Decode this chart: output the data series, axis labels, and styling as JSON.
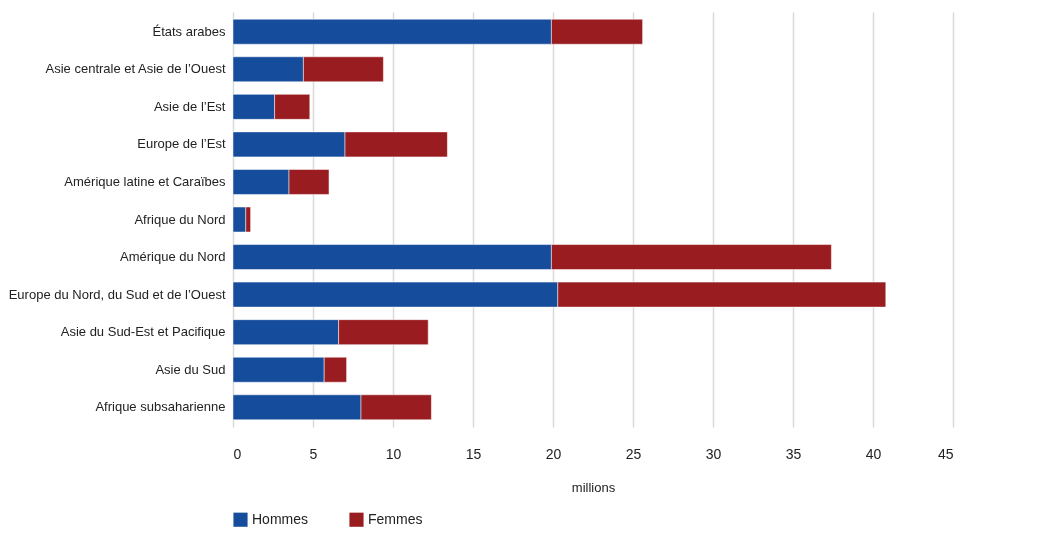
{
  "chart_data": {
    "type": "bar",
    "orientation": "horizontal",
    "stacked": true,
    "xlabel": "millions",
    "categories": [
      "États arabes",
      "Asie centrale et Asie de l’Ouest",
      "Asie de l’Est",
      "Europe de l’Est",
      "Amérique latine et Caraïbes",
      "Afrique du Nord",
      "Amérique du Nord",
      "Europe du Nord, du Sud et de l’Ouest",
      "Asie du Sud-Est et Pacifique",
      "Asie du Sud",
      "Afrique subsaharienne"
    ],
    "series": [
      {
        "name": "Hommes",
        "color": "#154c9c",
        "values": [
          19.9,
          4.4,
          2.6,
          7.0,
          3.5,
          0.8,
          19.9,
          20.3,
          6.6,
          5.7,
          8.0
        ]
      },
      {
        "name": "Femmes",
        "color": "#991c20",
        "values": [
          5.7,
          5.0,
          2.2,
          6.4,
          2.5,
          0.3,
          17.5,
          20.5,
          5.6,
          1.4,
          4.4
        ]
      }
    ],
    "xlim": [
      0,
      45
    ],
    "xticks": [
      0,
      5,
      10,
      15,
      20,
      25,
      30,
      35,
      40,
      45
    ],
    "grid": "x",
    "legend": "bottom"
  }
}
